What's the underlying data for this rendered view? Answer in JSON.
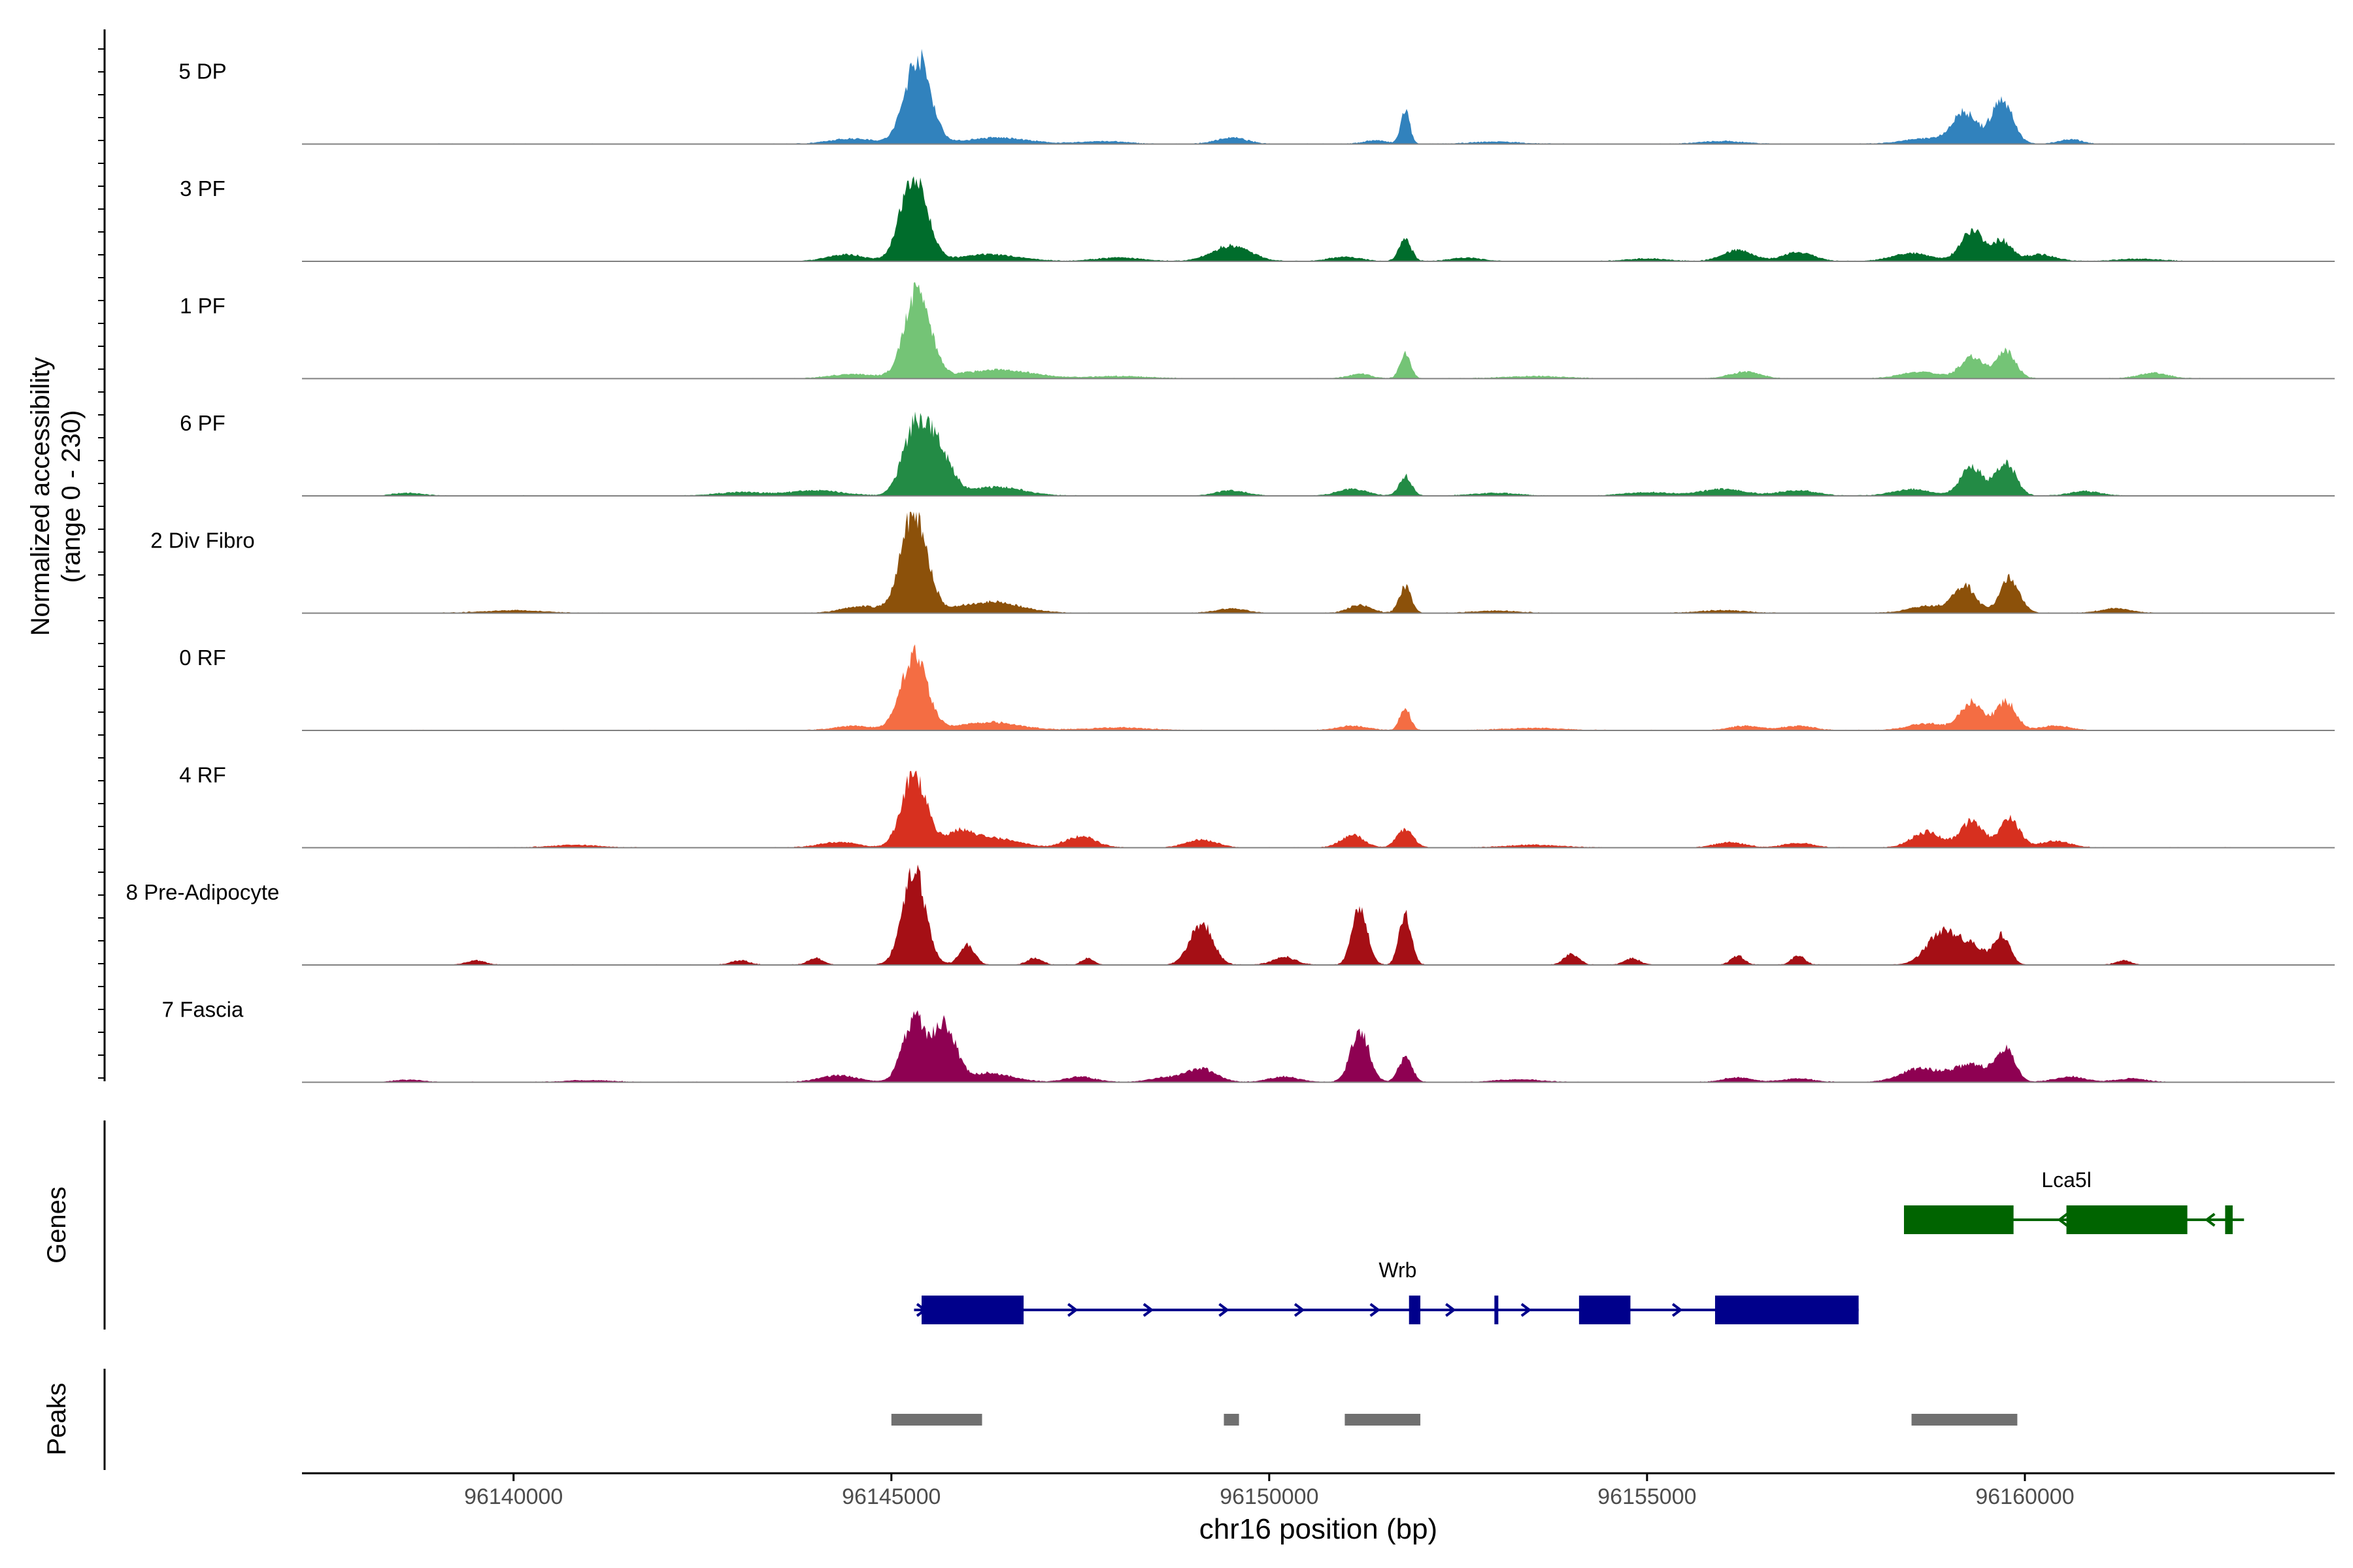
{
  "chart_data": {
    "type": "area",
    "title": "",
    "ylabel_line1": "Normalized accessibility",
    "ylabel_line2": "(range 0 - 230)",
    "y_range": [
      0,
      230
    ],
    "xlabel": "chr16 position (bp)",
    "xlim": [
      96137200,
      96164100
    ],
    "x_ticks": [
      96140000,
      96145000,
      96150000,
      96155000,
      96160000
    ],
    "x_tick_labels": [
      "96140000",
      "96145000",
      "96150000",
      "96155000",
      "96160000"
    ],
    "tracks": [
      {
        "name": "5 DP",
        "color": "#3182bd",
        "peaks": [
          [
            96145350,
            196,
            170
          ],
          [
            96146400,
            14,
            400
          ],
          [
            96151800,
            75,
            60
          ],
          [
            96151400,
            8,
            150
          ],
          [
            96144500,
            12,
            300
          ],
          [
            96149500,
            14,
            200
          ],
          [
            96159200,
            70,
            160
          ],
          [
            96159700,
            100,
            140
          ],
          [
            96158700,
            12,
            300
          ],
          [
            96160600,
            10,
            150
          ],
          [
            96147800,
            6,
            300
          ],
          [
            96156000,
            6,
            300
          ],
          [
            96153000,
            5,
            300
          ]
        ]
      },
      {
        "name": "3 PF",
        "color": "#006d2c",
        "peaks": [
          [
            96145300,
            200,
            170
          ],
          [
            96146300,
            15,
            400
          ],
          [
            96149500,
            35,
            250
          ],
          [
            96151800,
            50,
            80
          ],
          [
            96151000,
            10,
            200
          ],
          [
            96152600,
            8,
            200
          ],
          [
            96156200,
            25,
            200
          ],
          [
            96157000,
            20,
            200
          ],
          [
            96159300,
            70,
            150
          ],
          [
            96159700,
            45,
            130
          ],
          [
            96158500,
            18,
            250
          ],
          [
            96160200,
            15,
            200
          ],
          [
            96144400,
            15,
            250
          ],
          [
            96148000,
            8,
            300
          ],
          [
            96155000,
            6,
            250
          ],
          [
            96161500,
            5,
            300
          ]
        ]
      },
      {
        "name": "1 PF",
        "color": "#74c476",
        "peaks": [
          [
            96145350,
            198,
            170
          ],
          [
            96146400,
            20,
            450
          ],
          [
            96151800,
            55,
            70
          ],
          [
            96151200,
            10,
            150
          ],
          [
            96159300,
            50,
            150
          ],
          [
            96159750,
            60,
            130
          ],
          [
            96156300,
            15,
            200
          ],
          [
            96158600,
            15,
            250
          ],
          [
            96161700,
            12,
            200
          ],
          [
            96144500,
            10,
            300
          ],
          [
            96148000,
            5,
            400
          ],
          [
            96153500,
            5,
            400
          ]
        ]
      },
      {
        "name": "6 PF",
        "color": "#238b45",
        "peaks": [
          [
            96145300,
            140,
            160
          ],
          [
            96145600,
            110,
            180
          ],
          [
            96146400,
            20,
            350
          ],
          [
            96151800,
            45,
            80
          ],
          [
            96151100,
            15,
            200
          ],
          [
            96149500,
            12,
            200
          ],
          [
            96159300,
            65,
            150
          ],
          [
            96159750,
            75,
            130
          ],
          [
            96158500,
            15,
            250
          ],
          [
            96156000,
            15,
            300
          ],
          [
            96157000,
            12,
            250
          ],
          [
            96160800,
            10,
            200
          ],
          [
            96144000,
            12,
            350
          ],
          [
            96143000,
            8,
            300
          ],
          [
            96155000,
            8,
            300
          ],
          [
            96153000,
            6,
            300
          ],
          [
            96138600,
            6,
            200
          ]
        ]
      },
      {
        "name": "2 Div Fibro",
        "color": "#8c510a",
        "peaks": [
          [
            96145300,
            230,
            170
          ],
          [
            96146300,
            25,
            400
          ],
          [
            96151800,
            60,
            80
          ],
          [
            96151200,
            18,
            150
          ],
          [
            96149500,
            10,
            200
          ],
          [
            96159200,
            60,
            150
          ],
          [
            96159800,
            78,
            130
          ],
          [
            96158700,
            15,
            250
          ],
          [
            96161200,
            10,
            200
          ],
          [
            96144600,
            15,
            250
          ],
          [
            96140000,
            6,
            400
          ],
          [
            96156000,
            6,
            300
          ],
          [
            96153000,
            5,
            300
          ]
        ]
      },
      {
        "name": "0 RF",
        "color": "#f46d43",
        "peaks": [
          [
            96145300,
            170,
            170
          ],
          [
            96146300,
            18,
            400
          ],
          [
            96151800,
            50,
            70
          ],
          [
            96151100,
            10,
            200
          ],
          [
            96157000,
            10,
            200
          ],
          [
            96156300,
            10,
            200
          ],
          [
            96159300,
            65,
            150
          ],
          [
            96159750,
            65,
            130
          ],
          [
            96158700,
            15,
            250
          ],
          [
            96160400,
            10,
            200
          ],
          [
            96144500,
            10,
            250
          ],
          [
            96148000,
            6,
            400
          ],
          [
            96153500,
            5,
            400
          ]
        ]
      },
      {
        "name": "4 RF",
        "color": "#d7301f",
        "peaks": [
          [
            96145300,
            168,
            160
          ],
          [
            96145900,
            35,
            200
          ],
          [
            96146400,
            20,
            300
          ],
          [
            96147500,
            25,
            200
          ],
          [
            96149100,
            18,
            200
          ],
          [
            96151100,
            28,
            150
          ],
          [
            96151800,
            40,
            110
          ],
          [
            96156100,
            12,
            200
          ],
          [
            96157000,
            10,
            200
          ],
          [
            96158700,
            35,
            200
          ],
          [
            96159300,
            60,
            150
          ],
          [
            96159800,
            65,
            130
          ],
          [
            96160400,
            15,
            200
          ],
          [
            96144300,
            12,
            250
          ],
          [
            96140800,
            6,
            300
          ],
          [
            96153500,
            6,
            350
          ]
        ]
      },
      {
        "name": "8 Pre-Adipocyte",
        "color": "#a50f15",
        "peaks": [
          [
            96145300,
            220,
            150
          ],
          [
            96146000,
            45,
            100
          ],
          [
            96149100,
            95,
            150
          ],
          [
            96151200,
            130,
            100
          ],
          [
            96151800,
            115,
            80
          ],
          [
            96158900,
            70,
            200
          ],
          [
            96159700,
            65,
            100
          ],
          [
            96159300,
            40,
            200
          ],
          [
            96144000,
            15,
            100
          ],
          [
            96143000,
            10,
            120
          ],
          [
            96139500,
            10,
            120
          ],
          [
            96146900,
            15,
            100
          ],
          [
            96147600,
            15,
            80
          ],
          [
            96154000,
            25,
            100
          ],
          [
            96154800,
            15,
            100
          ],
          [
            96156200,
            20,
            90
          ],
          [
            96157000,
            20,
            90
          ],
          [
            96161300,
            10,
            100
          ],
          [
            96150200,
            18,
            150
          ]
        ]
      },
      {
        "name": "7 Fascia",
        "color": "#8e0152",
        "peaks": [
          [
            96145300,
            140,
            150
          ],
          [
            96145700,
            130,
            150
          ],
          [
            96146300,
            20,
            300
          ],
          [
            96151200,
            118,
            120
          ],
          [
            96151800,
            55,
            90
          ],
          [
            96149100,
            30,
            200
          ],
          [
            96150200,
            12,
            200
          ],
          [
            96147500,
            12,
            200
          ],
          [
            96148600,
            10,
            200
          ],
          [
            96144300,
            15,
            250
          ],
          [
            96159300,
            40,
            250
          ],
          [
            96159750,
            70,
            120
          ],
          [
            96158600,
            30,
            250
          ],
          [
            96160600,
            12,
            200
          ],
          [
            96161400,
            8,
            200
          ],
          [
            96156200,
            10,
            200
          ],
          [
            96157000,
            8,
            200
          ],
          [
            96138600,
            5,
            200
          ],
          [
            96153300,
            6,
            300
          ],
          [
            96141000,
            4,
            300
          ]
        ]
      }
    ],
    "genes_label": "Genes",
    "genes": [
      {
        "name": "Lca5l",
        "color": "#006400",
        "line": [
          96158400,
          96162900
        ],
        "exons": [
          [
            96158400,
            96159850
          ],
          [
            96160550,
            96162150
          ],
          [
            96162650,
            96162750
          ]
        ],
        "direction": "minus",
        "arrow_x": [
          96160500,
          96162450
        ]
      },
      {
        "name": "Wrb",
        "color": "#00008b",
        "line": [
          96145300,
          96157800
        ],
        "exons": [
          [
            96145400,
            96146750
          ],
          [
            96151850,
            96152000
          ],
          [
            96152980,
            96153010
          ],
          [
            96154100,
            96154780
          ],
          [
            96155900,
            96157800
          ]
        ],
        "direction": "plus",
        "arrow_x": [
          96145400,
          96147400,
          96148400,
          96149400,
          96150400,
          96151400,
          96152400,
          96153400,
          96155400
        ]
      }
    ],
    "peaks_label": "Peaks",
    "called_peaks": [
      [
        96145000,
        96146200
      ],
      [
        96149400,
        96149600
      ],
      [
        96151000,
        96152000
      ],
      [
        96158500,
        96159900
      ]
    ],
    "peak_color": "#707070"
  }
}
